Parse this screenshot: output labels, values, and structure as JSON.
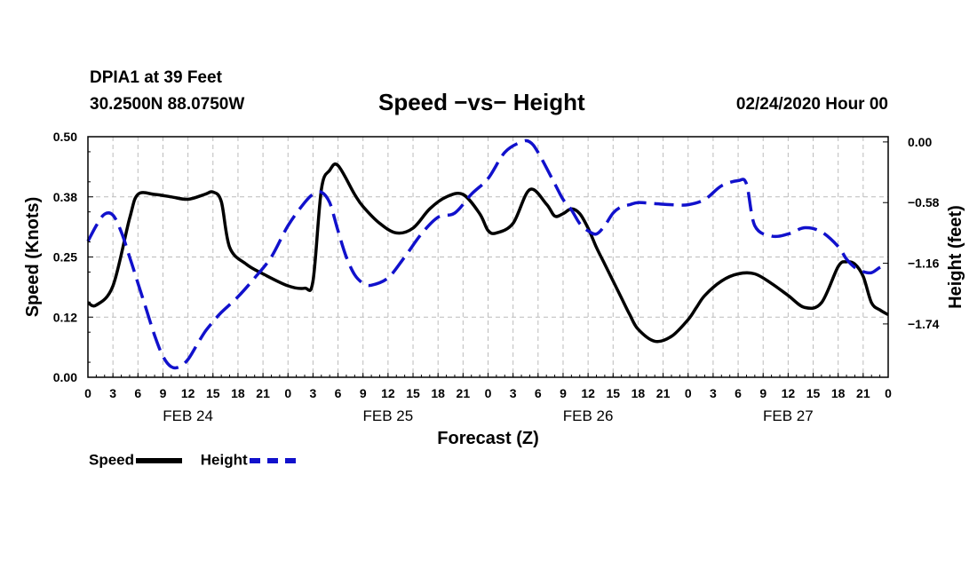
{
  "header": {
    "station": "DPIA1 at 39 Feet",
    "coords": "30.2500N 88.0750W",
    "title": "Speed −vs− Height",
    "datetime": "02/24/2020 Hour 00"
  },
  "legend": {
    "speed": "Speed",
    "height": "Height"
  },
  "colors": {
    "speed": "#000000",
    "height": "#1111cc",
    "grid": "#bbbbbb"
  },
  "chart_data": {
    "type": "line",
    "title": "Speed −vs− Height",
    "xlabel": "Forecast (Z)",
    "ylabel": "Speed (Knots)",
    "y2label": "Height (feet)",
    "xlim": [
      0,
      96
    ],
    "ylim": [
      0,
      0.5
    ],
    "y2lim": [
      -2.25,
      0.05
    ],
    "yticks": [
      "0.00",
      "0.12",
      "0.25",
      "0.38",
      "0.50"
    ],
    "y2ticks": [
      "0.00",
      "−0.58",
      "−1.16",
      "−1.74"
    ],
    "xtick_labels": [
      "0",
      "3",
      "6",
      "9",
      "12",
      "15",
      "18",
      "21",
      "0",
      "3",
      "6",
      "9",
      "12",
      "15",
      "18",
      "21",
      "0",
      "3",
      "6",
      "9",
      "12",
      "15",
      "18",
      "21",
      "0",
      "3",
      "6",
      "9",
      "12",
      "15",
      "18",
      "21",
      "0"
    ],
    "day_labels": [
      {
        "label": "FEB 24",
        "hour": 12
      },
      {
        "label": "FEB 25",
        "hour": 36
      },
      {
        "label": "FEB 26",
        "hour": 60
      },
      {
        "label": "FEB 27",
        "hour": 84
      }
    ],
    "grid": true,
    "legend_position": "bottom-left",
    "series": [
      {
        "name": "Speed",
        "axis": "left",
        "style": "solid",
        "x": [
          0,
          1,
          3,
          5,
          6,
          8,
          10,
          12,
          14,
          15,
          16,
          17,
          19,
          21,
          24,
          26,
          27,
          28,
          29,
          30,
          32,
          33,
          35,
          37,
          39,
          41,
          43,
          45,
          47,
          48,
          49,
          51,
          53,
          55,
          56,
          57,
          58,
          59,
          60,
          61,
          62,
          63,
          64,
          65,
          66,
          68,
          70,
          72,
          73,
          74,
          76,
          78,
          80,
          82,
          84,
          86,
          88,
          90,
          91,
          92,
          93,
          94,
          95,
          96
        ],
        "values": [
          0.155,
          0.15,
          0.19,
          0.33,
          0.38,
          0.38,
          0.375,
          0.37,
          0.38,
          0.385,
          0.365,
          0.27,
          0.235,
          0.215,
          0.19,
          0.185,
          0.2,
          0.39,
          0.43,
          0.44,
          0.38,
          0.355,
          0.32,
          0.3,
          0.31,
          0.35,
          0.375,
          0.38,
          0.34,
          0.305,
          0.3,
          0.32,
          0.39,
          0.36,
          0.335,
          0.34,
          0.35,
          0.34,
          0.31,
          0.27,
          0.235,
          0.2,
          0.165,
          0.13,
          0.1,
          0.075,
          0.085,
          0.12,
          0.145,
          0.17,
          0.2,
          0.215,
          0.215,
          0.195,
          0.17,
          0.145,
          0.155,
          0.23,
          0.24,
          0.235,
          0.21,
          0.155,
          0.14,
          0.13
        ]
      },
      {
        "name": "Height",
        "axis": "right",
        "style": "dashed",
        "x": [
          0,
          1,
          2,
          3,
          4,
          5,
          6,
          7,
          8,
          9,
          10,
          11,
          12,
          13,
          14,
          15,
          16,
          18,
          20,
          22,
          24,
          26,
          27,
          28,
          29,
          30,
          31,
          32,
          33,
          34,
          36,
          38,
          40,
          42,
          44,
          46,
          48,
          50,
          52,
          53,
          54,
          56,
          57,
          58,
          59,
          60,
          61,
          62,
          63,
          64,
          65,
          66,
          68,
          70,
          72,
          74,
          76,
          78,
          79,
          80,
          82,
          84,
          86,
          88,
          90,
          91,
          92,
          93,
          94,
          95,
          96
        ],
        "values": [
          -0.95,
          -0.8,
          -0.69,
          -0.7,
          -0.86,
          -1.1,
          -1.35,
          -1.6,
          -1.85,
          -2.05,
          -2.15,
          -2.15,
          -2.08,
          -1.95,
          -1.82,
          -1.72,
          -1.63,
          -1.48,
          -1.3,
          -1.1,
          -0.8,
          -0.58,
          -0.5,
          -0.48,
          -0.58,
          -0.85,
          -1.1,
          -1.27,
          -1.35,
          -1.37,
          -1.3,
          -1.1,
          -0.88,
          -0.72,
          -0.68,
          -0.5,
          -0.35,
          -0.1,
          0.0,
          0.0,
          -0.1,
          -0.4,
          -0.55,
          -0.65,
          -0.78,
          -0.85,
          -0.88,
          -0.8,
          -0.68,
          -0.62,
          -0.6,
          -0.58,
          -0.59,
          -0.6,
          -0.6,
          -0.55,
          -0.42,
          -0.37,
          -0.4,
          -0.8,
          -0.9,
          -0.88,
          -0.82,
          -0.86,
          -1.0,
          -1.12,
          -1.2,
          -1.24,
          -1.25,
          -1.2,
          -1.17
        ]
      }
    ]
  }
}
